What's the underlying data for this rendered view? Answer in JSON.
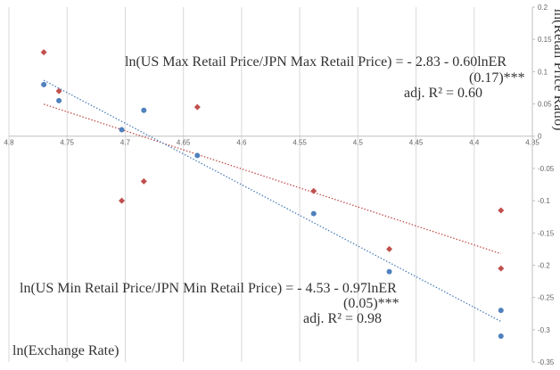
{
  "chart_data": {
    "type": "scatter",
    "x_label": "ln(Exchange Rate)",
    "y_label": "ln(Retail Price Ratio)",
    "annotations": [
      "ln(US Max Retail Price/JPN Max Retail Price) = - 2.83 - 0.60lnER",
      "(0.17)***",
      "adj. R² = 0.60",
      "ln(US Min Retail Price/JPN Min Retail Price) = - 4.53 - 0.97lnER",
      "(0.05)***",
      "adj. R² = 0.98"
    ],
    "x": [
      4.77,
      4.757,
      4.703,
      4.684,
      4.638,
      4.538,
      4.473,
      4.377,
      4.377
    ],
    "series": [
      {
        "color": "#c0504d",
        "marker": "diamond",
        "trendline": true,
        "values": [
          0.13,
          0.07,
          -0.1,
          -0.07,
          0.045,
          -0.085,
          -0.175,
          -0.115,
          -0.205
        ]
      },
      {
        "color": "#4f81bd",
        "marker": "circle",
        "trendline": true,
        "values": [
          0.08,
          0.055,
          0.01,
          0.04,
          -0.03,
          -0.12,
          -0.21,
          -0.31,
          -0.27
        ]
      }
    ],
    "xlim": [
      4.8,
      4.35
    ],
    "xticks": [
      4.8,
      4.75,
      4.7,
      4.65,
      4.6,
      4.55,
      4.5,
      4.45,
      4.4,
      4.35
    ],
    "ylim": [
      -0.35,
      0.2
    ],
    "yticks": [
      0.2,
      0.15,
      0.1,
      0.05,
      0,
      -0.05,
      -0.1,
      -0.15,
      -0.2,
      -0.25,
      -0.3,
      -0.35
    ],
    "grid": "vertical"
  }
}
